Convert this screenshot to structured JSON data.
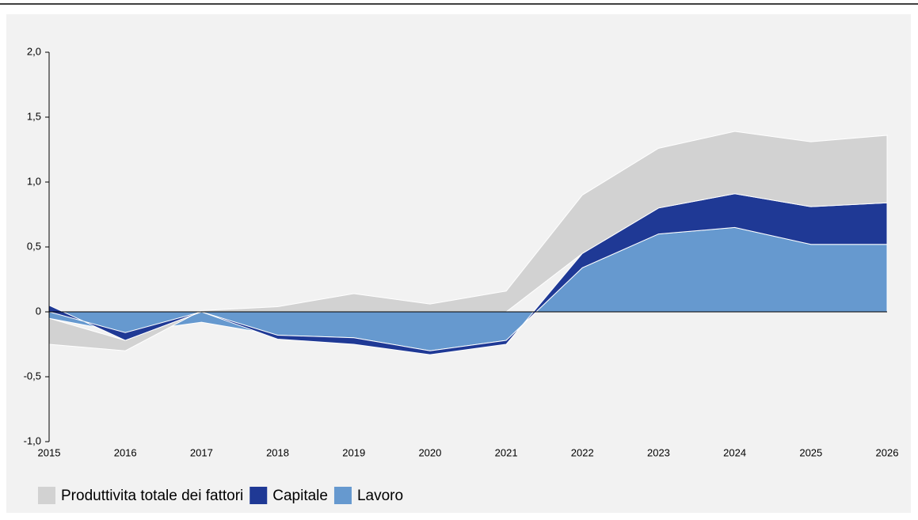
{
  "chart_data": {
    "type": "area",
    "categories": [
      "2015",
      "2016",
      "2017",
      "2018",
      "2019",
      "2020",
      "2021",
      "2022",
      "2023",
      "2024",
      "2025",
      "2026"
    ],
    "series": [
      {
        "name": "Lavoro",
        "color": "#6699cf",
        "values": [
          -0.05,
          -0.16,
          -0.08,
          -0.18,
          -0.2,
          -0.3,
          -0.22,
          0.34,
          0.6,
          0.65,
          0.52,
          0.52
        ]
      },
      {
        "name": "Capitale",
        "color": "#1f3995",
        "values": [
          0.05,
          -0.06,
          0,
          -0.03,
          -0.05,
          -0.03,
          -0.03,
          0.11,
          0.2,
          0.26,
          0.29,
          0.32
        ]
      },
      {
        "name": "Produttivita totale dei fattori",
        "color": "#d2d2d2",
        "values": [
          -0.2,
          -0.08,
          0.01,
          0.04,
          0.14,
          0.06,
          0.16,
          0.45,
          0.46,
          0.48,
          0.5,
          0.52
        ]
      }
    ],
    "ylim": [
      -1,
      2
    ],
    "yticks": [
      {
        "value": -1,
        "label": "-1,0"
      },
      {
        "value": -0.5,
        "label": "-0,5"
      },
      0,
      {
        "value": 0.5,
        "label": "0,5"
      },
      {
        "value": 1,
        "label": "1,0"
      },
      {
        "value": 1.5,
        "label": "1,5"
      },
      {
        "value": 2,
        "label": "2,0"
      }
    ],
    "legend": "bottom-left"
  }
}
